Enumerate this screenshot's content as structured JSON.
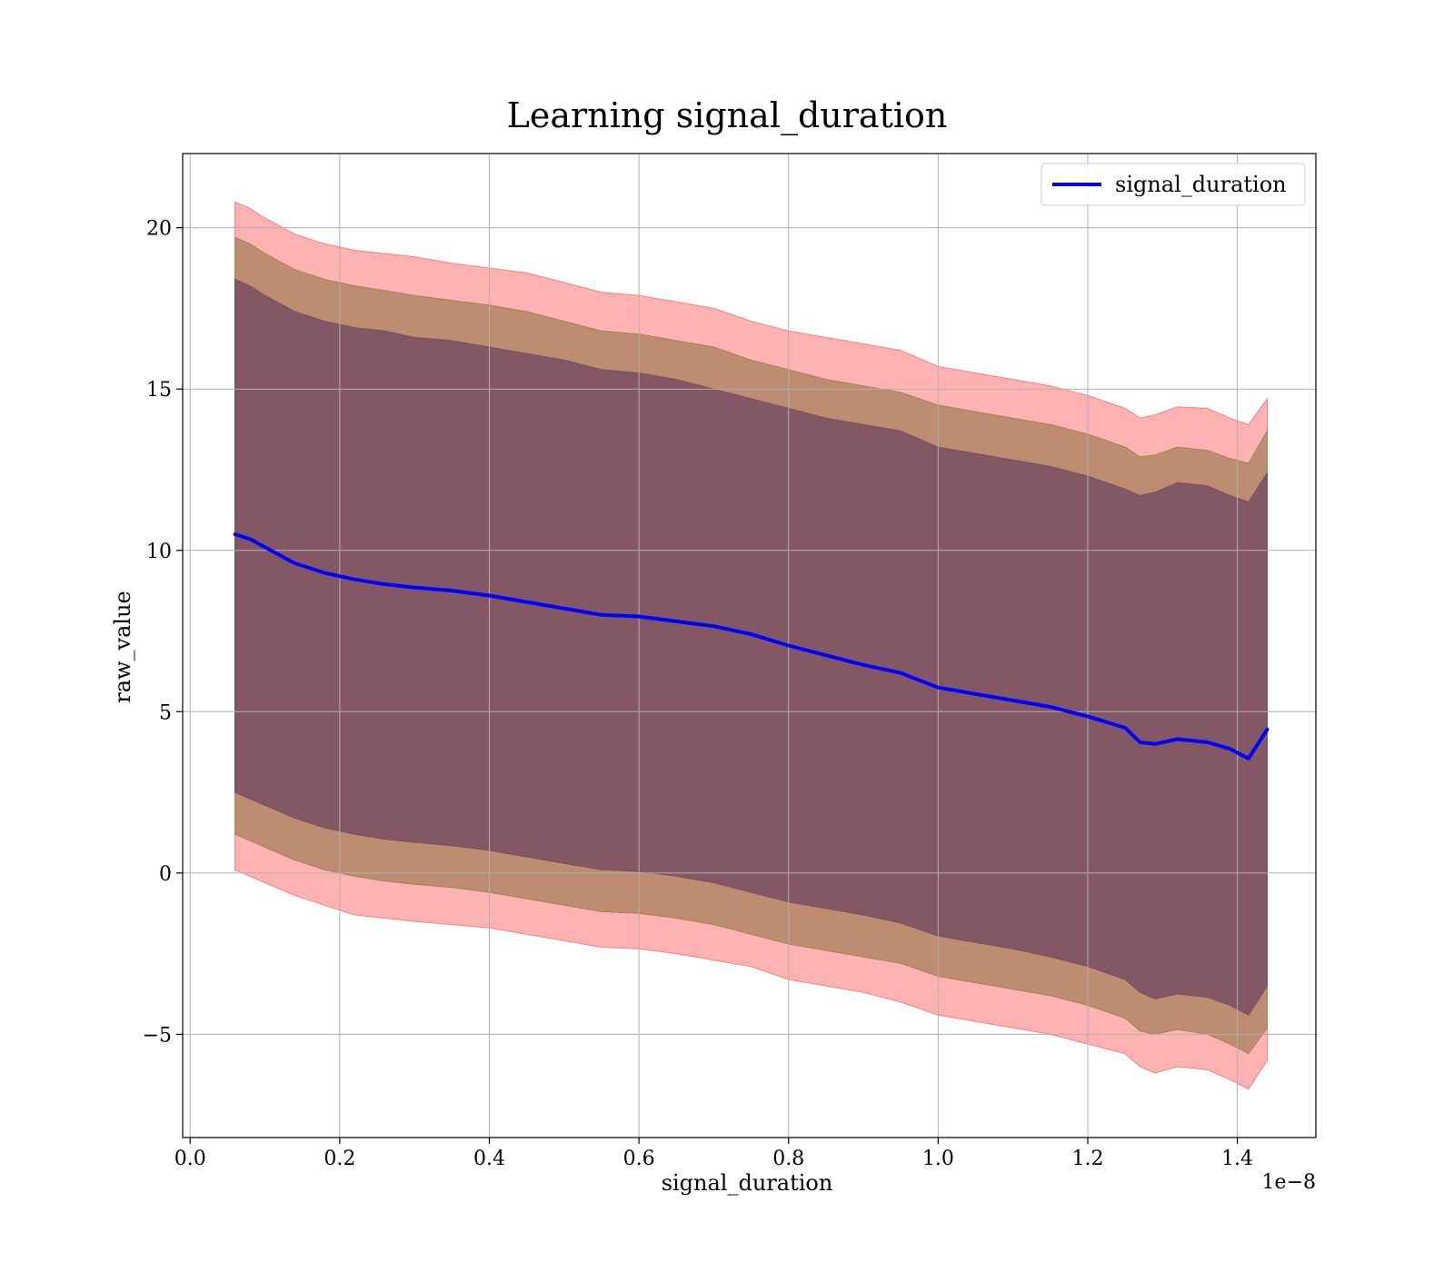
{
  "chart_data": {
    "type": "line",
    "title": "Learning signal_duration",
    "xlabel": "signal_duration",
    "ylabel": "raw_value",
    "x_offset_text": "1e−8",
    "xlim": [
      -0.01,
      1.505
    ],
    "ylim": [
      -8.2,
      22.3
    ],
    "x_ticks": [
      0.0,
      0.2,
      0.4,
      0.6,
      0.8,
      1.0,
      1.2,
      1.4
    ],
    "x_tick_labels": [
      "0.0",
      "0.2",
      "0.4",
      "0.6",
      "0.8",
      "1.0",
      "1.2",
      "1.4"
    ],
    "y_ticks": [
      -5,
      0,
      5,
      10,
      15,
      20
    ],
    "y_tick_labels": [
      "−5",
      "0",
      "5",
      "10",
      "15",
      "20"
    ],
    "grid": true,
    "legend": {
      "placement": "top-right",
      "entries": [
        "signal_duration"
      ]
    },
    "colors": {
      "mean_line": "#0000ff",
      "band_outer": "#ff7f7f",
      "band_middle": "#a6805a",
      "band_inner": "#7a4d62"
    },
    "x": [
      0.06,
      0.08,
      0.1,
      0.14,
      0.18,
      0.22,
      0.26,
      0.3,
      0.35,
      0.4,
      0.45,
      0.5,
      0.55,
      0.6,
      0.65,
      0.7,
      0.75,
      0.8,
      0.85,
      0.9,
      0.95,
      1.0,
      1.05,
      1.1,
      1.15,
      1.2,
      1.25,
      1.27,
      1.29,
      1.32,
      1.36,
      1.39,
      1.415,
      1.44
    ],
    "mean": [
      10.5,
      10.35,
      10.1,
      9.6,
      9.3,
      9.1,
      8.95,
      8.85,
      8.75,
      8.6,
      8.4,
      8.2,
      8.0,
      7.95,
      7.8,
      7.65,
      7.4,
      7.05,
      6.75,
      6.45,
      6.2,
      5.75,
      5.55,
      5.35,
      5.15,
      4.85,
      4.5,
      4.05,
      4.0,
      4.15,
      4.05,
      3.85,
      3.55,
      4.45
    ],
    "series": [
      {
        "mean_line": true,
        "values": [
          10.5,
          10.35,
          10.1,
          9.6,
          9.3,
          9.1,
          8.95,
          8.85,
          8.75,
          8.6,
          8.4,
          8.2,
          8.0,
          7.95,
          7.8,
          7.65,
          7.4,
          7.05,
          6.75,
          6.45,
          6.2,
          5.75,
          5.55,
          5.35,
          5.15,
          4.85,
          4.5,
          4.05,
          4.0,
          4.15,
          4.05,
          3.85,
          3.55,
          4.45
        ]
      }
    ],
    "bands": [
      {
        "level": "outer",
        "upper": [
          20.8,
          20.6,
          20.3,
          19.8,
          19.5,
          19.3,
          19.2,
          19.1,
          18.9,
          18.75,
          18.6,
          18.3,
          18.0,
          17.9,
          17.7,
          17.5,
          17.1,
          16.8,
          16.6,
          16.4,
          16.2,
          15.7,
          15.5,
          15.3,
          15.1,
          14.8,
          14.4,
          14.1,
          14.2,
          14.45,
          14.4,
          14.1,
          13.9,
          14.7
        ],
        "lower": [
          0.1,
          -0.1,
          -0.3,
          -0.7,
          -1.0,
          -1.3,
          -1.4,
          -1.5,
          -1.6,
          -1.7,
          -1.9,
          -2.1,
          -2.3,
          -2.35,
          -2.5,
          -2.7,
          -2.9,
          -3.3,
          -3.5,
          -3.7,
          -4.0,
          -4.4,
          -4.6,
          -4.8,
          -5.0,
          -5.3,
          -5.6,
          -6.0,
          -6.2,
          -6.0,
          -6.1,
          -6.4,
          -6.7,
          -5.8
        ]
      },
      {
        "level": "middle",
        "upper": [
          19.7,
          19.5,
          19.2,
          18.7,
          18.4,
          18.2,
          18.05,
          17.9,
          17.75,
          17.6,
          17.4,
          17.1,
          16.8,
          16.7,
          16.5,
          16.3,
          15.9,
          15.6,
          15.3,
          15.1,
          14.9,
          14.5,
          14.3,
          14.1,
          13.9,
          13.6,
          13.2,
          12.9,
          12.95,
          13.2,
          13.1,
          12.85,
          12.7,
          13.7
        ],
        "lower": [
          1.2,
          1.0,
          0.8,
          0.4,
          0.1,
          -0.1,
          -0.25,
          -0.35,
          -0.45,
          -0.6,
          -0.8,
          -1.0,
          -1.2,
          -1.25,
          -1.4,
          -1.6,
          -1.9,
          -2.2,
          -2.4,
          -2.6,
          -2.8,
          -3.2,
          -3.4,
          -3.6,
          -3.8,
          -4.1,
          -4.5,
          -4.9,
          -5.0,
          -4.85,
          -5.0,
          -5.3,
          -5.6,
          -4.8
        ]
      },
      {
        "level": "inner",
        "upper": [
          18.4,
          18.2,
          17.9,
          17.4,
          17.1,
          16.9,
          16.8,
          16.6,
          16.5,
          16.3,
          16.1,
          15.9,
          15.6,
          15.5,
          15.3,
          15.0,
          14.7,
          14.4,
          14.1,
          13.9,
          13.7,
          13.2,
          13.0,
          12.8,
          12.6,
          12.3,
          11.9,
          11.7,
          11.8,
          12.1,
          12.0,
          11.7,
          11.5,
          12.4
        ],
        "lower": [
          2.5,
          2.3,
          2.1,
          1.7,
          1.4,
          1.2,
          1.05,
          0.95,
          0.85,
          0.7,
          0.5,
          0.3,
          0.1,
          0.05,
          -0.1,
          -0.3,
          -0.6,
          -0.9,
          -1.1,
          -1.3,
          -1.55,
          -1.95,
          -2.15,
          -2.35,
          -2.6,
          -2.9,
          -3.3,
          -3.7,
          -3.9,
          -3.75,
          -3.85,
          -4.1,
          -4.4,
          -3.5
        ]
      }
    ]
  }
}
